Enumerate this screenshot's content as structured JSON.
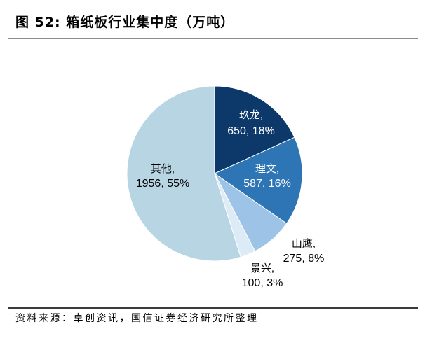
{
  "chart_data": {
    "type": "pie",
    "title": "图 52: 箱纸板行业集中度（万吨）",
    "slices": [
      {
        "name": "玖龙",
        "value": 650,
        "percent": 18,
        "color": "#0c386a",
        "label_color": "#ffffff"
      },
      {
        "name": "理文",
        "value": 587,
        "percent": 16,
        "color": "#2e75b6",
        "label_color": "#ffffff"
      },
      {
        "name": "山鹰",
        "value": 275,
        "percent": 8,
        "color": "#9dc3e6",
        "label_color": "#000000"
      },
      {
        "name": "景兴",
        "value": 100,
        "percent": 3,
        "color": "#ddebf7",
        "label_color": "#000000"
      },
      {
        "name": "其他",
        "value": 1956,
        "percent": 55,
        "color": "#b8d5e4",
        "label_color": "#000000"
      }
    ]
  },
  "footer": {
    "source": "资料来源：卓创资讯，国信证券经济研究所整理"
  }
}
